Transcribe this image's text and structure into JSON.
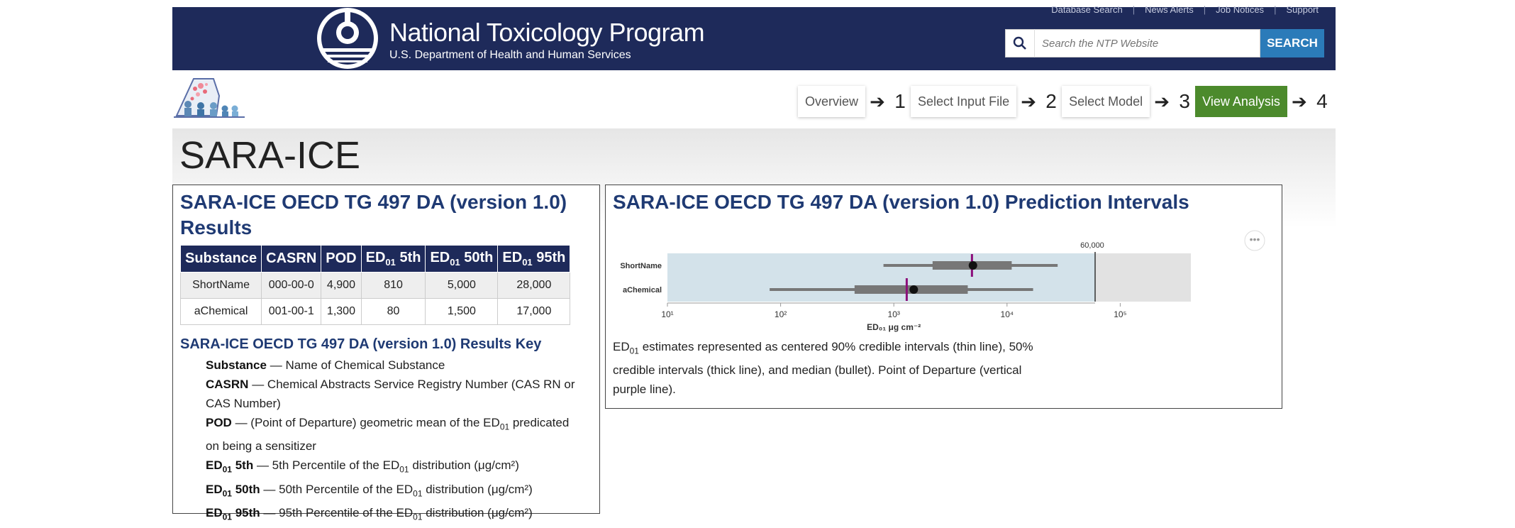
{
  "header": {
    "utility_links": [
      "Database Search",
      "News Alerts",
      "Job Notices",
      "Support"
    ],
    "org_title": "National Toxicology Program",
    "org_subtitle": "U.S. Department of Health and Human Services",
    "search": {
      "placeholder": "Search the NTP Website",
      "button_label": "SEARCH"
    }
  },
  "wizard": {
    "steps": [
      {
        "label": "Overview",
        "active": false
      },
      {
        "number": "1",
        "label": "Select Input File",
        "active": false
      },
      {
        "number": "2",
        "label": "Select Model",
        "active": false
      },
      {
        "number": "3",
        "label": "View Analysis",
        "active": true
      },
      {
        "number": "4"
      }
    ]
  },
  "page_title": "SARA-ICE",
  "results_panel": {
    "title_line1": "SARA-ICE OECD TG 497 DA (version 1.0)",
    "title_line2": "Results",
    "columns": [
      "Substance",
      "CASRN",
      "POD",
      "ED01 5th",
      "ED01 50th",
      "ED01 95th"
    ],
    "rows": [
      {
        "substance": "ShortName",
        "casrn": "000-00-0",
        "pod": "4,900",
        "p5": "810",
        "p50": "5,000",
        "p95": "28,000"
      },
      {
        "substance": "aChemical",
        "casrn": "001-00-1",
        "pod": "1,300",
        "p5": "80",
        "p50": "1,500",
        "p95": "17,000"
      }
    ],
    "key_title": "SARA-ICE OECD TG 497 DA (version 1.0) Results Key",
    "key": {
      "substance": "— Name of Chemical Substance",
      "casrn": "— Chemical Abstracts Service Registry Number (CAS RN or CAS Number)",
      "pod_a": "— (Point of Departure) geometric mean of the ED",
      "pod_b": " predicated on being a sensitizer",
      "p5_a": "— 5th Percentile of the ED",
      "p50_a": "— 50th Percentile of the ED",
      "p95_a": "— 95th Percentile of the ED",
      "dist_suffix": " distribution (μg/cm²)"
    }
  },
  "intervals_panel": {
    "title": "SARA-ICE OECD TG 497 DA (version 1.0) Prediction Intervals",
    "caption_a": "estimates represented as centered 90% credible intervals (thin line), 50% credible intervals (thick line), and median (bullet). Point of Departure (vertical purple line)."
  },
  "chart_data": {
    "type": "interval",
    "x_scale": "log10",
    "xlim": [
      10,
      1000000
    ],
    "xticks": [
      "10¹",
      "10²",
      "10³",
      "10⁴",
      "10⁵"
    ],
    "xlabel": "ED₀₁ μg cm⁻²",
    "top_label": "60,000",
    "threshold": 60000,
    "colors": {
      "band_top": "#d3e2ea",
      "band_bottom": "#e2e2e2",
      "bar": "#777777",
      "pod": "#8b0e7a",
      "median": "#111111"
    },
    "series": [
      {
        "name": "ShortName",
        "p5": 810,
        "p25": 2200,
        "median": 5000,
        "p75": 11000,
        "p95": 28000,
        "pod": 4900
      },
      {
        "name": "aChemical",
        "p5": 80,
        "p25": 450,
        "median": 1500,
        "p75": 4500,
        "p95": 17000,
        "pod": 1300
      }
    ]
  }
}
